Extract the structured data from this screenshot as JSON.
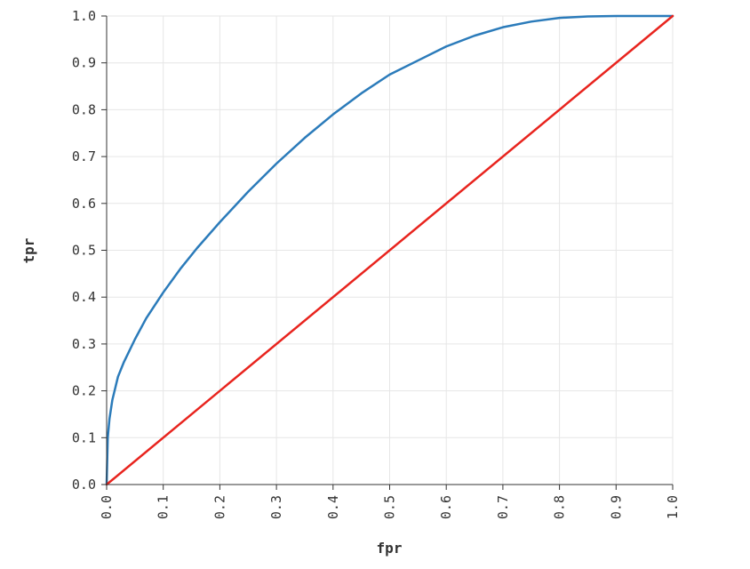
{
  "chart_data": {
    "type": "line",
    "title": "",
    "xlabel": "fpr",
    "ylabel": "tpr",
    "xlim": [
      0,
      1
    ],
    "ylim": [
      0,
      1
    ],
    "grid": true,
    "x_ticks": [
      "0.0",
      "0.1",
      "0.2",
      "0.3",
      "0.4",
      "0.5",
      "0.6",
      "0.7",
      "0.8",
      "0.9",
      "1.0"
    ],
    "y_ticks": [
      "0.0",
      "0.1",
      "0.2",
      "0.3",
      "0.4",
      "0.5",
      "0.6",
      "0.7",
      "0.8",
      "0.9",
      "1.0"
    ],
    "series": [
      {
        "color": "#2b7bba",
        "x": [
          0,
          0.002,
          0.005,
          0.01,
          0.02,
          0.03,
          0.05,
          0.07,
          0.1,
          0.13,
          0.16,
          0.2,
          0.25,
          0.3,
          0.35,
          0.4,
          0.45,
          0.5,
          0.55,
          0.6,
          0.65,
          0.7,
          0.75,
          0.8,
          0.85,
          0.9,
          0.95,
          1.0
        ],
        "y": [
          0,
          0.1,
          0.14,
          0.18,
          0.23,
          0.26,
          0.31,
          0.355,
          0.41,
          0.46,
          0.505,
          0.56,
          0.625,
          0.685,
          0.74,
          0.79,
          0.835,
          0.875,
          0.905,
          0.935,
          0.958,
          0.976,
          0.988,
          0.996,
          0.999,
          1.0,
          1.0,
          1.0
        ]
      },
      {
        "color": "#e8241e",
        "x": [
          0,
          1
        ],
        "y": [
          0,
          1
        ]
      }
    ]
  }
}
